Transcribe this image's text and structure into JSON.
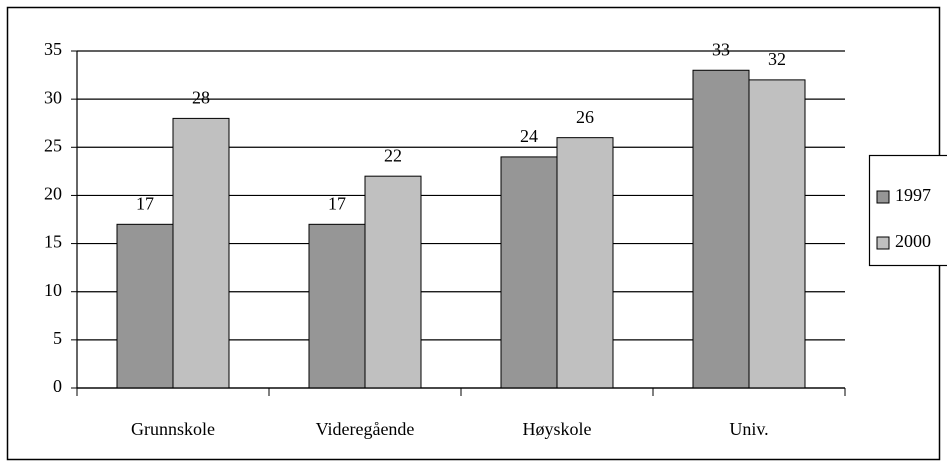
{
  "chart_data": {
    "type": "bar",
    "categories": [
      "Grunnskole",
      "Videregående",
      "Høyskole",
      "Univ."
    ],
    "series": [
      {
        "name": "1997",
        "color": "#969696",
        "values": [
          17,
          17,
          24,
          33
        ]
      },
      {
        "name": "2000",
        "color": "#c0c0c0",
        "values": [
          28,
          22,
          26,
          32
        ]
      }
    ],
    "ylim": [
      0,
      35
    ],
    "yticks": [
      0,
      5,
      10,
      15,
      20,
      25,
      30,
      35
    ],
    "grid": true,
    "legend": "right"
  }
}
